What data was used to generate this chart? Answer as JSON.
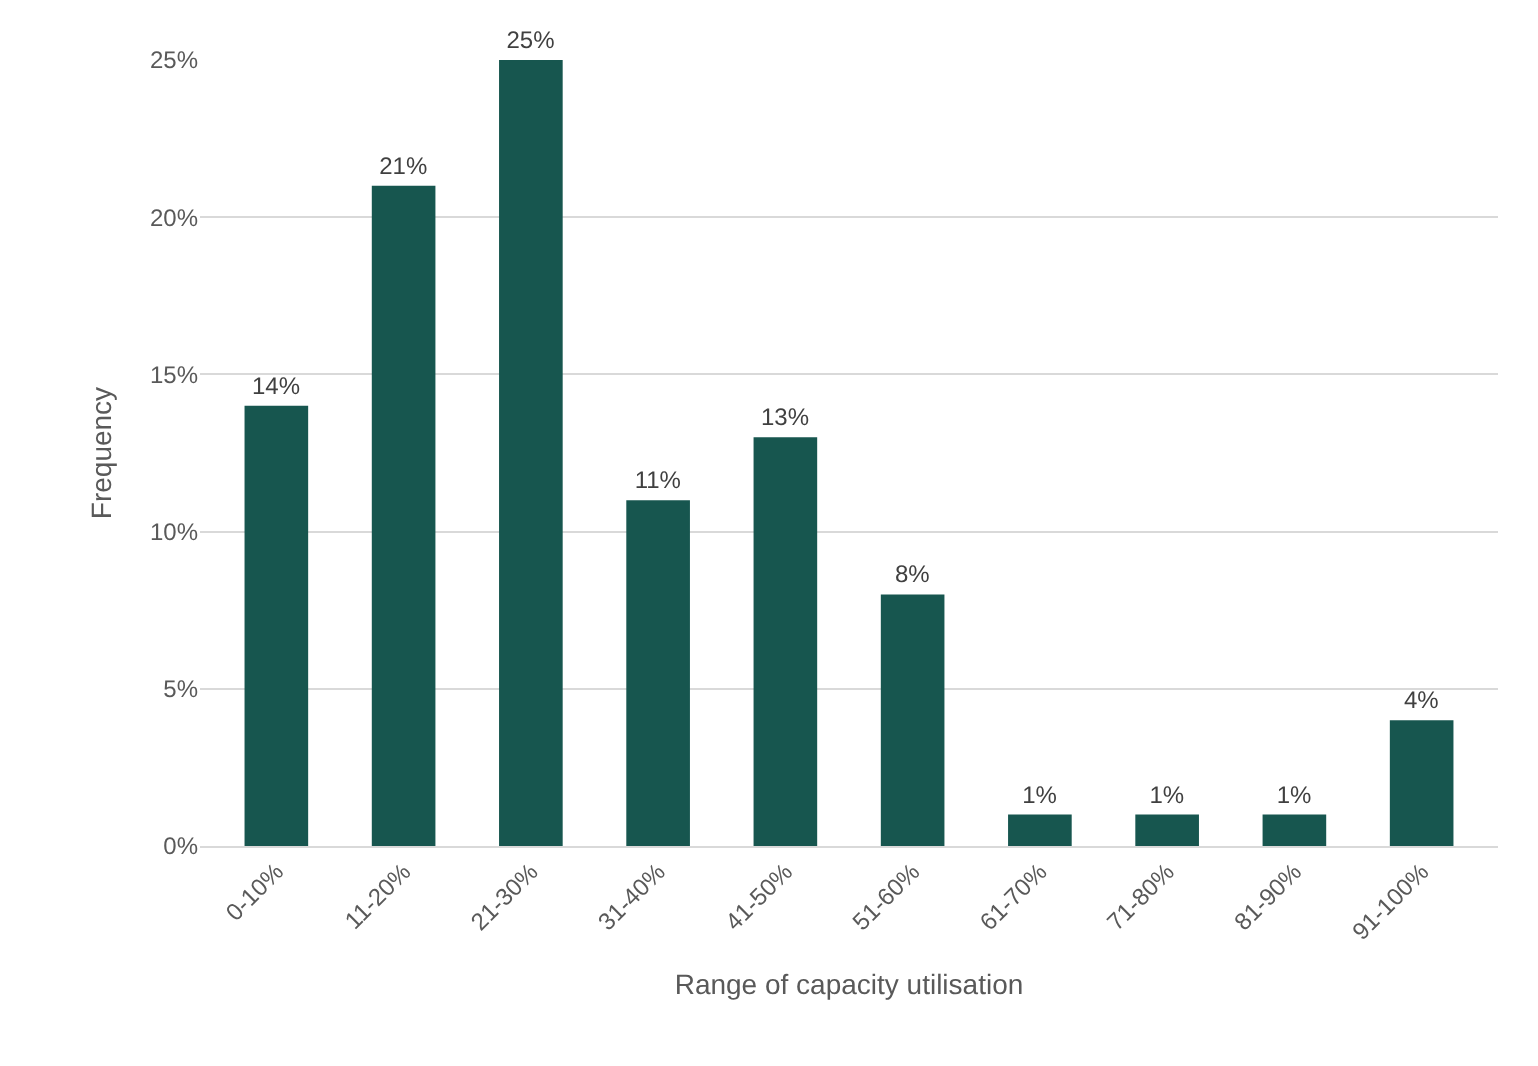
{
  "chart_data": {
    "type": "bar",
    "xlabel": "Range of capacity utilisation",
    "ylabel": "Frequency",
    "categories": [
      "0-10%",
      "11-20%",
      "21-30%",
      "31-40%",
      "41-50%",
      "51-60%",
      "61-70%",
      "71-80%",
      "81-90%",
      "91-100%"
    ],
    "values": [
      14,
      21,
      25,
      11,
      13,
      8,
      1,
      1,
      1,
      4
    ],
    "value_labels": [
      "14%",
      "21%",
      "25%",
      "11%",
      "13%",
      "8%",
      "1%",
      "1%",
      "1%",
      "4%"
    ],
    "color": "#17564f",
    "ylim": [
      0,
      25
    ],
    "yticks": [
      {
        "value": 0,
        "label": "0%"
      },
      {
        "value": 5,
        "label": "5%"
      },
      {
        "value": 10,
        "label": "10%"
      },
      {
        "value": 15,
        "label": "15%"
      },
      {
        "value": 20,
        "label": "20%"
      },
      {
        "value": 25,
        "label": "25%"
      }
    ],
    "grid": "y"
  }
}
